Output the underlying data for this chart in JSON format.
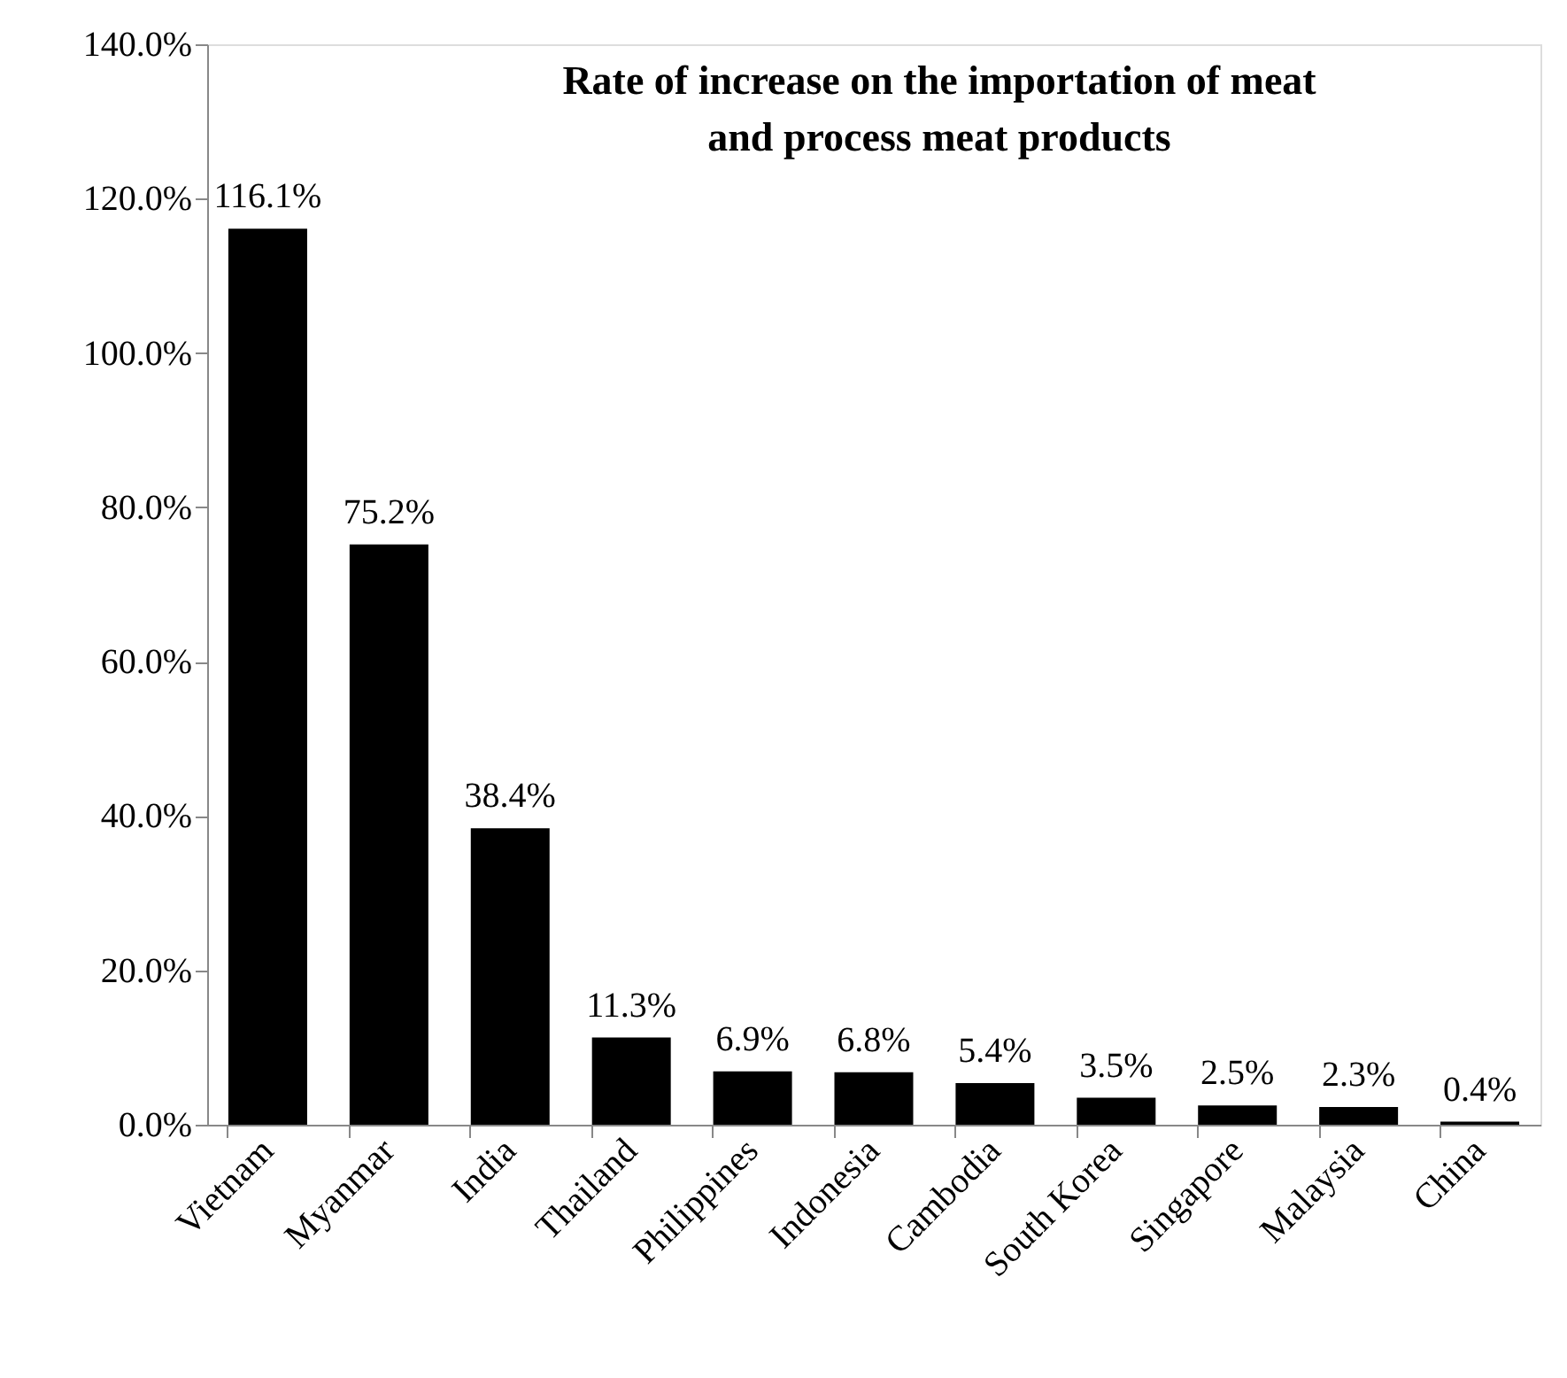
{
  "chart_data": {
    "type": "bar",
    "title": [
      "Rate of increase on the importation of meat",
      "and process meat products"
    ],
    "categories": [
      "Vietnam",
      "Myanmar",
      "India",
      "Thailand",
      "Philippines",
      "Indonesia",
      "Cambodia",
      "South Korea",
      "Singapore",
      "Malaysia",
      "China"
    ],
    "values": [
      116.1,
      75.2,
      38.4,
      11.3,
      6.9,
      6.8,
      5.4,
      3.5,
      2.5,
      2.3,
      0.4
    ],
    "value_labels": [
      "116.1%",
      "75.2%",
      "38.4%",
      "11.3%",
      "6.9%",
      "6.8%",
      "5.4%",
      "3.5%",
      "2.5%",
      "2.3%",
      "0.4%"
    ],
    "color": "#000000",
    "ylim": [
      0,
      140
    ],
    "yticks": [
      {
        "value": 0,
        "label": "0.0%"
      },
      {
        "value": 20,
        "label": "20.0%"
      },
      {
        "value": 40,
        "label": "40.0%"
      },
      {
        "value": 60,
        "label": "60.0%"
      },
      {
        "value": 80,
        "label": "80.0%"
      },
      {
        "value": 100,
        "label": "100.0%"
      },
      {
        "value": 120,
        "label": "120.0%"
      },
      {
        "value": 140,
        "label": "140.0%"
      }
    ],
    "grid": false
  }
}
